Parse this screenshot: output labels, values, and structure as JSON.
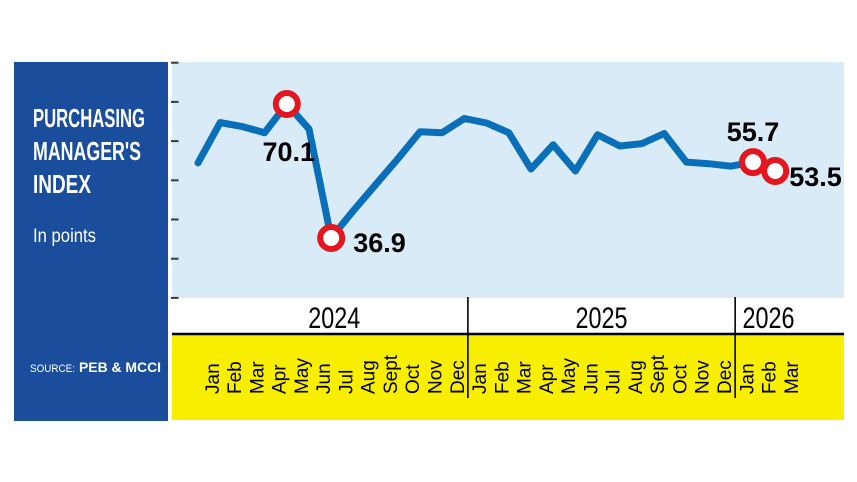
{
  "panel": {
    "title_lines": [
      "PURCHASING",
      "MANAGER'S",
      "INDEX"
    ],
    "subtitle": "In points",
    "source_prefix": "SOURCE:",
    "source_name": "PEB & MCCI"
  },
  "colors": {
    "panel_blue": "#1a4e9c",
    "chart_bg": "#d9ebf6",
    "line_blue": "#0a6fb9",
    "marker_red": "#e4161f",
    "axis_yellow": "#f8ee00",
    "ink_black": "#000000",
    "tick_gray": "#3a3a3a"
  },
  "chart_data": {
    "type": "line",
    "title": "Purchasing Manager's Index",
    "ylabel": "In points",
    "ylim": [
      20,
      82
    ],
    "ytick_interval": 10,
    "yticks_labeled": false,
    "grid": false,
    "legend": "none",
    "years": [
      {
        "label": "2024",
        "months": [
          "Jan",
          "Feb",
          "Mar",
          "Apr",
          "May",
          "Jun",
          "Jul",
          "Aug",
          "Sept",
          "Oct",
          "Nov",
          "Dec"
        ]
      },
      {
        "label": "2025",
        "months": [
          "Jan",
          "Feb",
          "Mar",
          "Apr",
          "May",
          "Jun",
          "Jul",
          "Aug",
          "Sept",
          "Oct",
          "Nov",
          "Dec"
        ]
      },
      {
        "label": "2026",
        "months": [
          "Jan",
          "Feb",
          "Mar"
        ]
      }
    ],
    "values": [
      55.5,
      65.5,
      64.5,
      63.0,
      70.1,
      63.9,
      36.9,
      43.7,
      50.1,
      56.5,
      63.2,
      63.0,
      66.5,
      65.4,
      63.0,
      54.0,
      60.0,
      53.5,
      62.5,
      59.7,
      60.3,
      62.8,
      55.7,
      55.3,
      54.7,
      55.7,
      53.5
    ],
    "annotations": [
      {
        "month": "May 2024",
        "index": 4,
        "value": 70.1,
        "label": "70.1"
      },
      {
        "month": "Jul 2024",
        "index": 6,
        "value": 36.9,
        "label": "36.9"
      },
      {
        "month": "Feb 2026",
        "index": 25,
        "value": 55.7,
        "label": "55.7"
      },
      {
        "month": "Mar 2026",
        "index": 26,
        "value": 53.5,
        "label": "53.5"
      }
    ]
  }
}
